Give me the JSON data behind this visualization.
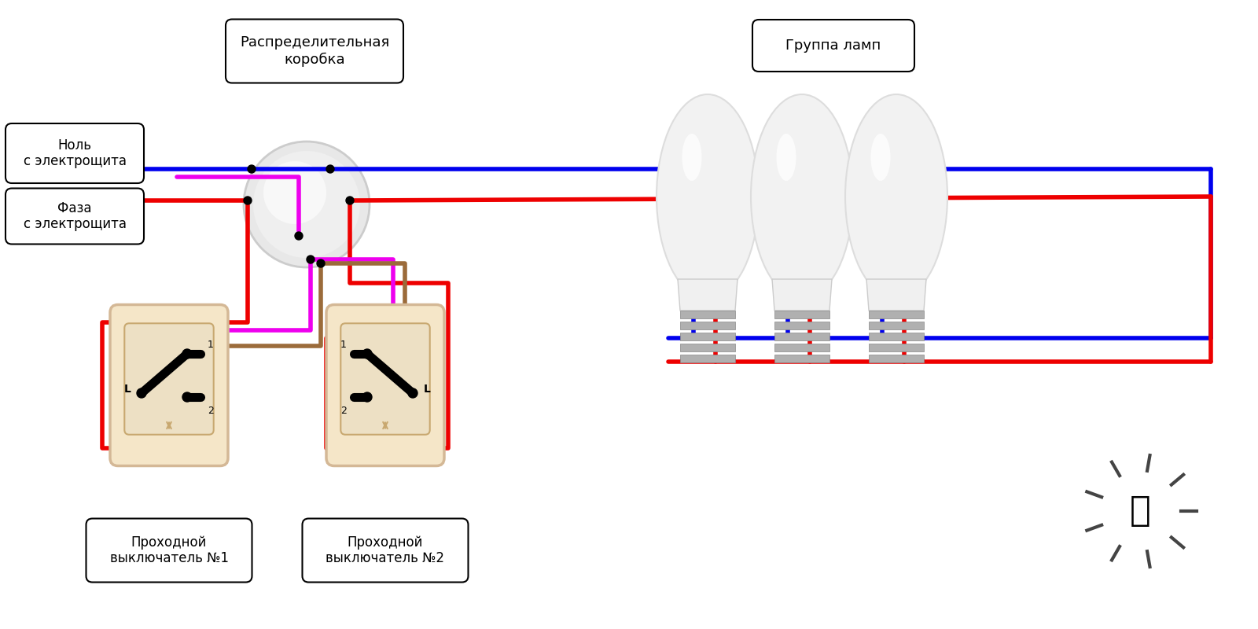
{
  "bg_color": "#ffffff",
  "wire_colors": {
    "blue": "#0000ee",
    "red": "#ee0000",
    "magenta": "#ee00ee",
    "brown": "#9b6b3a"
  },
  "junction_box_label": "Распределительная\nкоробка",
  "null_label": "Ноль\nс электрощита",
  "phase_label": "Фаза\nс электрощита",
  "lamp_group_label": "Группа ламп",
  "switch1_label": "Проходной\nвыключатель №1",
  "switch2_label": "Проходной\nвыключатель №2",
  "switch_box_color": "#f5e6c8",
  "switch_box_edge": "#d4b896",
  "junction_color": "#e0e0e0",
  "junction_edge": "#c0c0c0"
}
